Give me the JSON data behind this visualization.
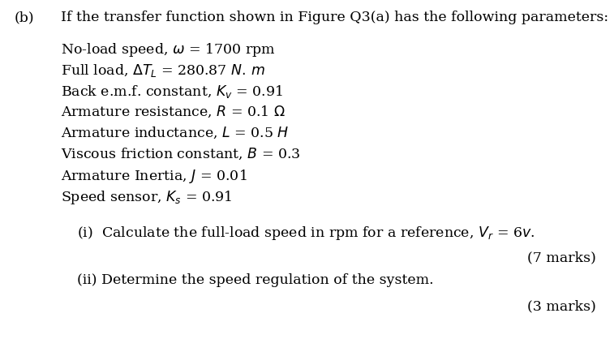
{
  "background_color": "#ffffff",
  "part_label": "(b)",
  "header": "If the transfer function shown in Figure Q3(a) has the following parameters:",
  "param_lines": [
    "No-load speed, $\\omega$ = 1700 rpm",
    "Full load, $\\Delta T_L$ = 280.87 $N.\\,m$",
    "Back e.m.f. constant, $K_v$ = 0.91",
    "Armature resistance, $R$ = 0.1 $\\Omega$",
    "Armature inductance, $L$ = 0.5 $H$",
    "Viscous friction constant, $B$ = 0.3",
    "Armature Inertia, $J$ = 0.01",
    "Speed sensor, $K_s$ = 0.91"
  ],
  "sub_i": "(i)  Calculate the full-load speed in rpm for a reference, $V_r$ = 6$v$.",
  "marks_i": "(7 marks)",
  "sub_ii": "(ii) Determine the speed regulation of the system.",
  "marks_ii": "(3 marks)",
  "font_size": 12.5
}
